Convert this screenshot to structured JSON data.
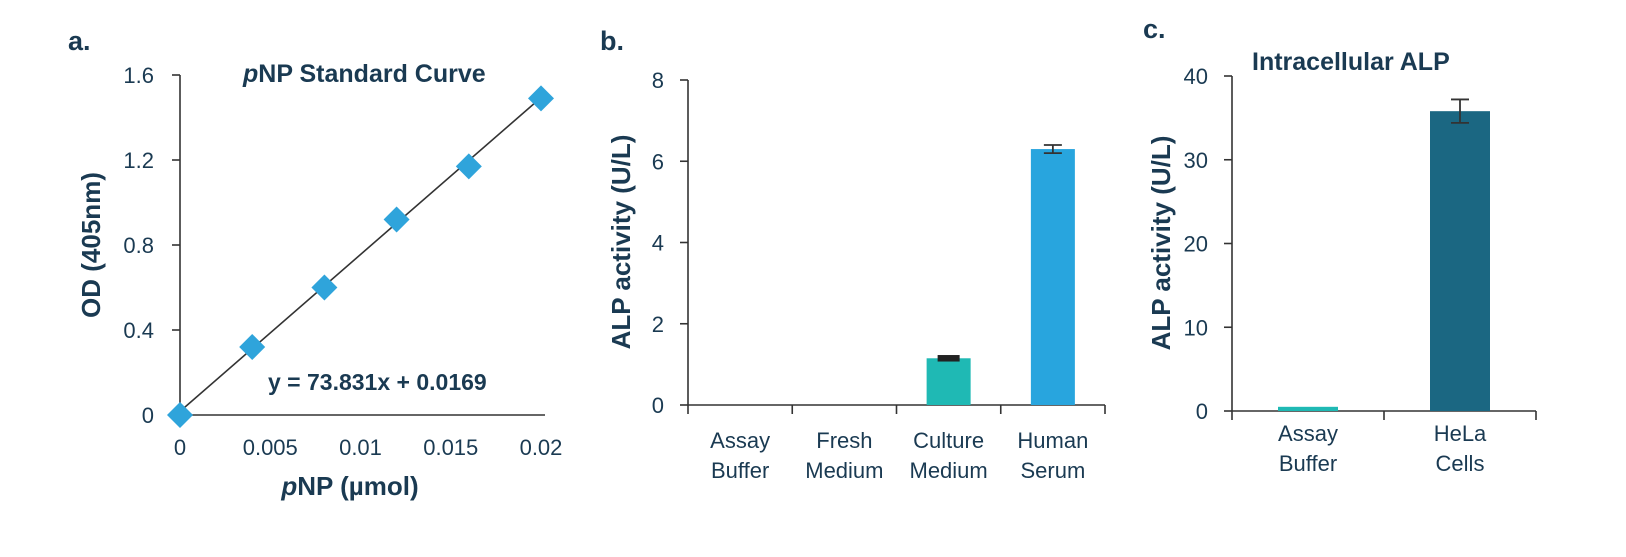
{
  "colors": {
    "text": "#1a3a52",
    "axis": "#333333",
    "marker_light_blue": "#2fa4db",
    "teal": "#1fb9b4",
    "bright_blue": "#28a5de",
    "dark_teal": "#1b6782",
    "error_bar_dark": "#222222"
  },
  "chart_data": [
    {
      "panel": "a.",
      "type": "scatter",
      "title": "pNP Standard Curve",
      "title_italic_prefix": "p",
      "title_rest": "NP Standard Curve",
      "xlabel": "pNP (µmol)",
      "xlabel_italic_prefix": "p",
      "xlabel_rest": "NP (µmol)",
      "ylabel": "OD (405nm)",
      "xlim": [
        0,
        0.02
      ],
      "ylim": [
        0,
        1.6
      ],
      "x_ticks": [
        "0",
        "0.005",
        "0.01",
        "0.015",
        "0.02"
      ],
      "y_ticks": [
        "0",
        "0.4",
        "0.8",
        "1.2",
        "1.6"
      ],
      "points": [
        {
          "x": 0,
          "y": 0
        },
        {
          "x": 0.004,
          "y": 0.32
        },
        {
          "x": 0.008,
          "y": 0.6
        },
        {
          "x": 0.012,
          "y": 0.92
        },
        {
          "x": 0.016,
          "y": 1.17
        },
        {
          "x": 0.02,
          "y": 1.49
        }
      ],
      "trendline": {
        "slope": 73.831,
        "intercept": 0.0169
      },
      "equation": "y = 73.831x + 0.0169",
      "grid": false
    },
    {
      "panel": "b.",
      "type": "bar",
      "ylabel": "ALP activity (U/L)",
      "ylim": [
        0,
        8
      ],
      "y_ticks": [
        "0",
        "2",
        "4",
        "6",
        "8"
      ],
      "categories": [
        [
          "Assay",
          "Buffer"
        ],
        [
          "Fresh",
          "Medium"
        ],
        [
          "Culture",
          "Medium"
        ],
        [
          "Human",
          "Serum"
        ]
      ],
      "values": [
        0,
        0,
        1.15,
        6.3
      ],
      "errors": [
        0,
        0,
        0.08,
        0.1
      ],
      "bar_colors": [
        "#1fb9b4",
        "#1fb9b4",
        "#1fb9b4",
        "#28a5de"
      ],
      "grid": false
    },
    {
      "panel": "c.",
      "type": "bar",
      "title": "Intracellular ALP",
      "ylabel": "ALP activity (U/L)",
      "ylim": [
        0,
        40
      ],
      "y_ticks": [
        "0",
        "10",
        "20",
        "30",
        "40"
      ],
      "categories": [
        [
          "Assay",
          "Buffer"
        ],
        [
          "HeLa",
          "Cells"
        ]
      ],
      "values": [
        0.5,
        35.8
      ],
      "errors": [
        0,
        1.4
      ],
      "bar_colors": [
        "#1fb9b4",
        "#1b6782"
      ],
      "grid": false
    }
  ]
}
